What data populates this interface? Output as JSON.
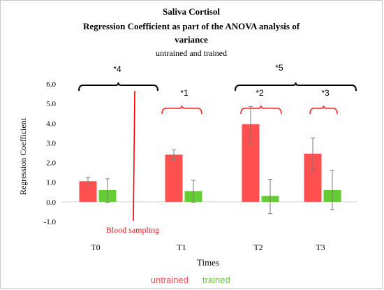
{
  "chart_data": {
    "type": "bar",
    "title": "Saliva Cortisol",
    "subtitle": "Regression Coefficient as part of the ANOVA analysis of variance",
    "subtitle_lines": [
      "Regression Coefficient as part of the ANOVA analysis of",
      "variance"
    ],
    "subsubtitle": "untrained and trained",
    "xlabel": "Times",
    "ylabel": "Regression Coefficient",
    "categories": [
      "T0",
      "T1",
      "T2",
      "T3"
    ],
    "ylim": [
      -1.0,
      6.0
    ],
    "yticks": [
      "-1.0",
      "0.0",
      "1.0",
      "2.0",
      "3.0",
      "4.0",
      "5.0",
      "6.0"
    ],
    "grid": false,
    "legend_position": "bottom",
    "series": [
      {
        "name": "untrained",
        "color": "#ff5050",
        "values": [
          1.05,
          2.4,
          3.95,
          2.45
        ],
        "err_low": [
          0.83,
          2.15,
          2.95,
          1.6
        ],
        "err_high": [
          1.25,
          2.65,
          4.85,
          3.25
        ]
      },
      {
        "name": "trained",
        "color": "#66cc33",
        "values": [
          0.6,
          0.55,
          0.3,
          0.6
        ],
        "err_low": [
          -0.02,
          -0.02,
          -0.6,
          -0.4
        ],
        "err_high": [
          1.17,
          1.1,
          1.15,
          1.6
        ]
      }
    ],
    "annotations": [
      {
        "text": "*4",
        "type": "black-brace",
        "from": "T0",
        "to": "T1",
        "color": "#000000"
      },
      {
        "text": "*5",
        "type": "black-brace",
        "from": "T2",
        "to": "T3",
        "color": "#000000"
      },
      {
        "text": "*1",
        "type": "red-brace",
        "at": "T1",
        "color": "#ff2020"
      },
      {
        "text": "*2",
        "type": "red-brace",
        "at": "T2",
        "color": "#ff2020"
      },
      {
        "text": "*3",
        "type": "red-brace",
        "at": "T3",
        "color": "#ff2020"
      },
      {
        "text": "Blood sampling",
        "type": "vertical-line",
        "between": [
          "T0",
          "T1"
        ],
        "color": "#ff0000"
      }
    ]
  }
}
